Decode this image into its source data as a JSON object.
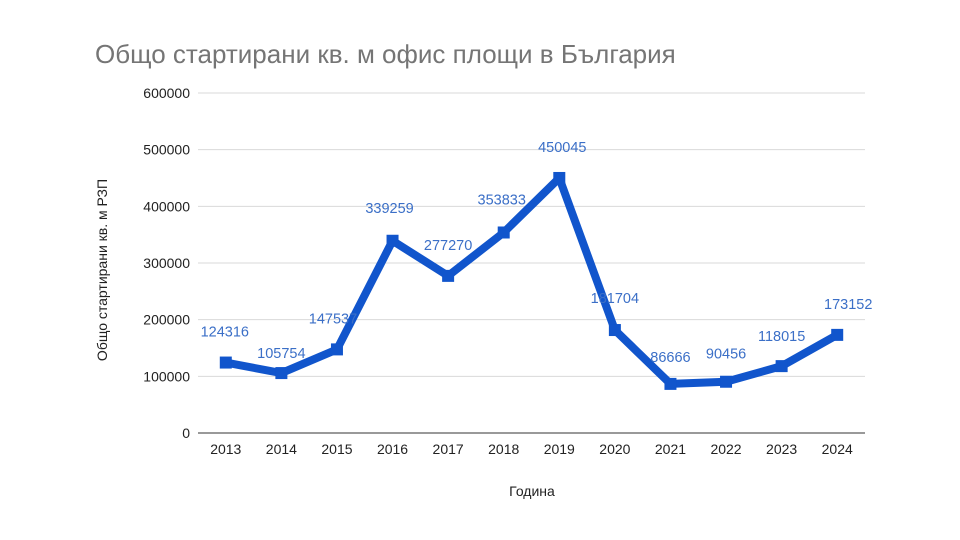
{
  "chart_data": {
    "type": "line",
    "title": "Общо стартирани кв. м офис площи в България",
    "xlabel": "Година",
    "ylabel": "Общо стартирани кв. м РЗП",
    "categories": [
      "2013",
      "2014",
      "2015",
      "2016",
      "2017",
      "2018",
      "2019",
      "2020",
      "2021",
      "2022",
      "2023",
      "2024"
    ],
    "series": [
      {
        "values": [
          124316,
          105754,
          147537,
          339259,
          277270,
          353833,
          450045,
          181704,
          86666,
          90456,
          118015,
          173152
        ],
        "labels": [
          "124316",
          "105754",
          "147537",
          "339259",
          "277270",
          "353833",
          "450045",
          "181704",
          "86666",
          "90456",
          "118015",
          "173152"
        ],
        "color": "#1155cc"
      }
    ],
    "yticks": [
      "0",
      "100000",
      "200000",
      "300000",
      "400000",
      "500000",
      "600000"
    ],
    "ylim": [
      0,
      600000
    ],
    "grid": true,
    "legend": "none"
  }
}
